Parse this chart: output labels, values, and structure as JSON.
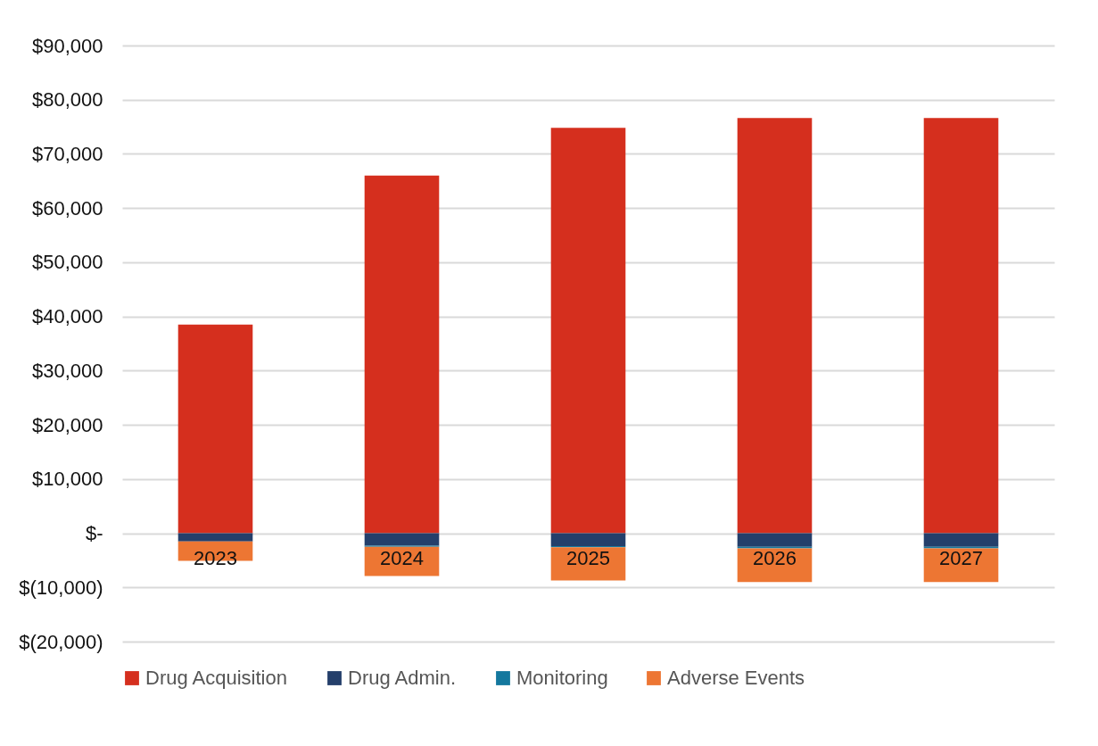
{
  "chart_data": {
    "type": "bar",
    "stacked": true,
    "categories": [
      "2023",
      "2024",
      "2025",
      "2026",
      "2027"
    ],
    "series": [
      {
        "name": "Drug Acquisition",
        "color": "#d52f1e",
        "values": [
          38500,
          66000,
          74800,
          76600,
          76600
        ]
      },
      {
        "name": "Drug Admin.",
        "color": "#243f6b",
        "values": [
          -1500,
          -2300,
          -2400,
          -2500,
          -2500
        ]
      },
      {
        "name": "Monitoring",
        "color": "#14789e",
        "values": [
          null,
          -200,
          -200,
          -300,
          -300
        ]
      },
      {
        "name": "Adverse Events",
        "color": "#ed7633",
        "values": [
          -3600,
          -5400,
          -6100,
          -6200,
          -6200
        ]
      }
    ],
    "ylim": [
      -20000,
      90000
    ],
    "yticks": [
      {
        "value": -20000,
        "label": "$(20,000)"
      },
      {
        "value": -10000,
        "label": "$(10,000)"
      },
      {
        "value": 0,
        "label": "$-"
      },
      {
        "value": 10000,
        "label": "$10,000"
      },
      {
        "value": 20000,
        "label": "$20,000"
      },
      {
        "value": 30000,
        "label": "$30,000"
      },
      {
        "value": 40000,
        "label": "$40,000"
      },
      {
        "value": 50000,
        "label": "$50,000"
      },
      {
        "value": 60000,
        "label": "$60,000"
      },
      {
        "value": 70000,
        "label": "$70,000"
      },
      {
        "value": 80000,
        "label": "$80,000"
      },
      {
        "value": 90000,
        "label": "$90,000"
      }
    ],
    "grid": "y",
    "legend": "bottom"
  }
}
